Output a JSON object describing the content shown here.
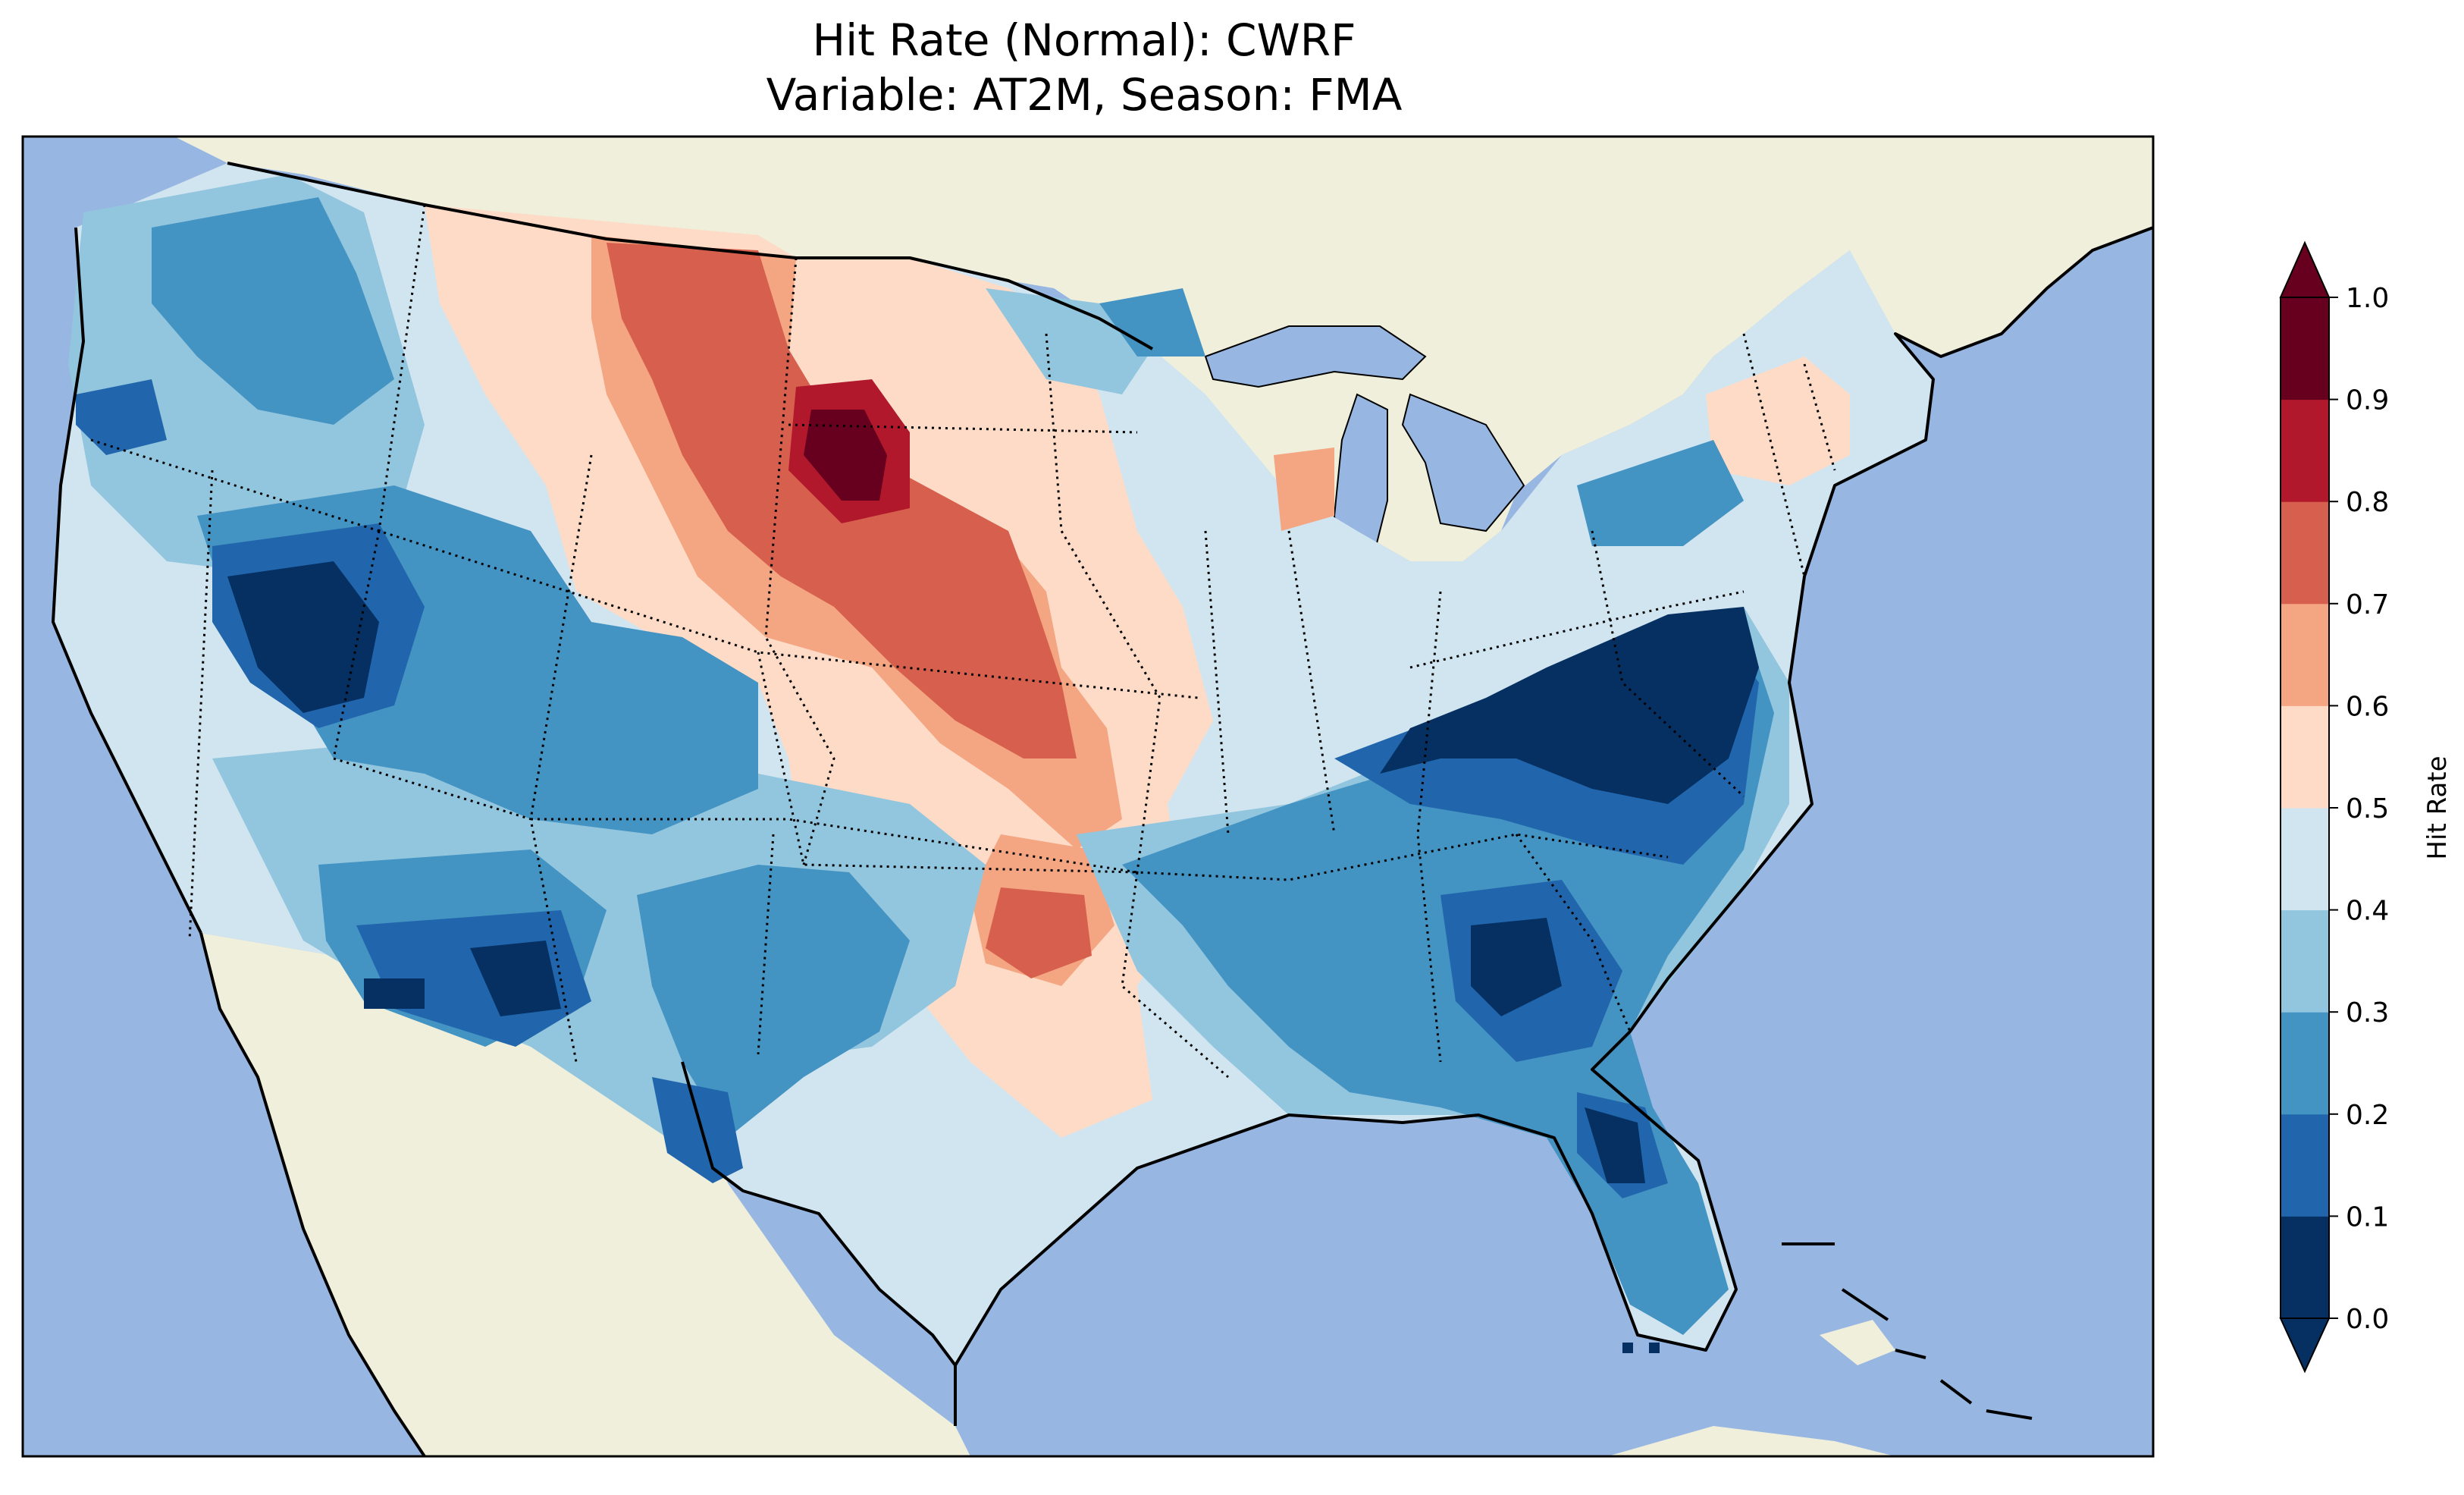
{
  "title": {
    "line1": "Hit Rate (Normal): CWRF",
    "line2": "Variable: AT2M, Season: FMA"
  },
  "colors": {
    "ocean": "#97b6e1",
    "land": "#efefdb",
    "frame": "#000000"
  },
  "colorbar": {
    "label": "Hit Rate",
    "extend": "both",
    "levels": [
      0.0,
      0.1,
      0.2,
      0.3,
      0.4,
      0.5,
      0.6,
      0.7,
      0.8,
      0.9,
      1.0
    ],
    "tick_labels": [
      "0.0",
      "0.1",
      "0.2",
      "0.3",
      "0.4",
      "0.5",
      "0.6",
      "0.7",
      "0.8",
      "0.9",
      "1.0"
    ],
    "colors": [
      "#053061",
      "#2166ac",
      "#4393c3",
      "#92c5de",
      "#d1e5f0",
      "#fddbc7",
      "#f4a582",
      "#d6604d",
      "#b2182b",
      "#67001f"
    ],
    "under_color": "#053061",
    "over_color": "#67001f"
  },
  "map_regions": [
    {
      "name": "Pacific Northwest coast",
      "value": 0.35
    },
    {
      "name": "Washington interior",
      "value": 0.25
    },
    {
      "name": "Oregon west",
      "value": 0.45
    },
    {
      "name": "Central Nevada",
      "value": 0.05
    },
    {
      "name": "Utah",
      "value": 0.25
    },
    {
      "name": "Montana east",
      "value": 0.75
    },
    {
      "name": "Wyoming / SD border",
      "value": 0.95
    },
    {
      "name": "Nebraska",
      "value": 0.75
    },
    {
      "name": "Kansas",
      "value": 0.55
    },
    {
      "name": "Oklahoma",
      "value": 0.65
    },
    {
      "name": "Texas west",
      "value": 0.25
    },
    {
      "name": "Arizona south",
      "value": 0.15
    },
    {
      "name": "Virginia / North Carolina",
      "value": 0.05
    },
    {
      "name": "Georgia",
      "value": 0.05
    },
    {
      "name": "Florida",
      "value": 0.25
    },
    {
      "name": "New England",
      "value": 0.45
    }
  ]
}
